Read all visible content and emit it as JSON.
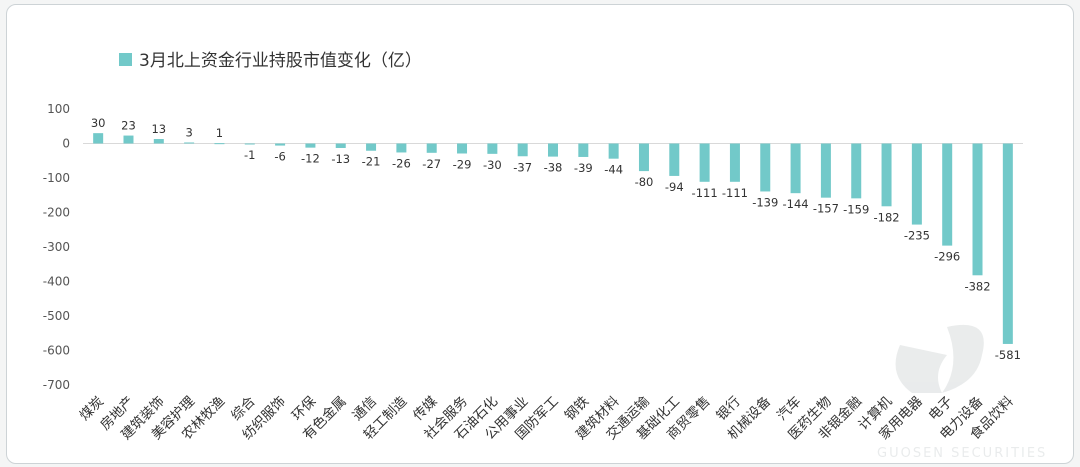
{
  "chart_data": {
    "type": "bar",
    "title": "3月北上资金行业持股市值变化（亿）",
    "series": [
      {
        "name": "3月北上资金行业持股市值变化（亿）",
        "color": "#72c9c9"
      }
    ],
    "categories": [
      "煤炭",
      "房地产",
      "建筑装饰",
      "美容护理",
      "农林牧渔",
      "综合",
      "纺织服饰",
      "环保",
      "有色金属",
      "通信",
      "轻工制造",
      "传媒",
      "社会服务",
      "石油石化",
      "公用事业",
      "国防军工",
      "钢铁",
      "建筑材料",
      "交通运输",
      "基础化工",
      "商贸零售",
      "银行",
      "机械设备",
      "汽车",
      "医药生物",
      "非银金融",
      "计算机",
      "家用电器",
      "电子",
      "电力设备",
      "食品饮料"
    ],
    "values": [
      30,
      23,
      13,
      3,
      1,
      -1,
      -6,
      -12,
      -13,
      -21,
      -26,
      -27,
      -29,
      -30,
      -37,
      -38,
      -39,
      -44,
      -80,
      -94,
      -111,
      -111,
      -139,
      -144,
      -157,
      -159,
      -182,
      -235,
      -296,
      -382,
      -581
    ],
    "ylim": [
      -700,
      100
    ],
    "yticks": [
      100,
      0,
      -100,
      -200,
      -300,
      -400,
      -500,
      -600,
      -700
    ],
    "grid": false,
    "legend": "top-left"
  },
  "watermark": {
    "brand": "GUOSEN SECURITIES"
  }
}
